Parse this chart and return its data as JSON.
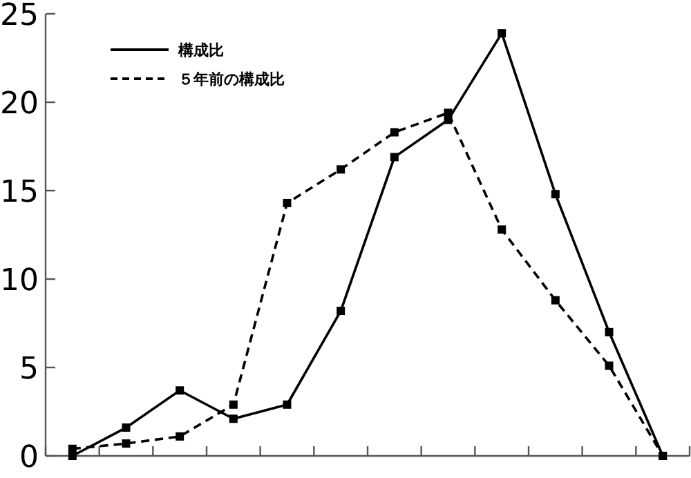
{
  "chart_data": {
    "type": "line",
    "categories": [
      null,
      null,
      null,
      null,
      null,
      null,
      null,
      null,
      null,
      null,
      null,
      null
    ],
    "series": [
      {
        "name": "構成比",
        "color": "#000000",
        "line_style": "solid",
        "values": [
          0,
          1.6,
          3.7,
          2.1,
          2.9,
          8.2,
          16.9,
          19.0,
          23.9,
          14.8,
          7.0,
          0
        ]
      },
      {
        "name": "５年前の構成比",
        "color": "#000000",
        "line_style": "dashed",
        "values": [
          0.4,
          0.7,
          1.1,
          2.9,
          14.3,
          16.2,
          18.3,
          19.4,
          12.8,
          8.8,
          5.1,
          0
        ]
      }
    ],
    "ylim": [
      0,
      25
    ],
    "yticks": [
      0,
      5,
      10,
      15,
      20,
      25
    ],
    "marker": "square",
    "legend": "top left",
    "grid": false,
    "tick_labels": "y"
  }
}
